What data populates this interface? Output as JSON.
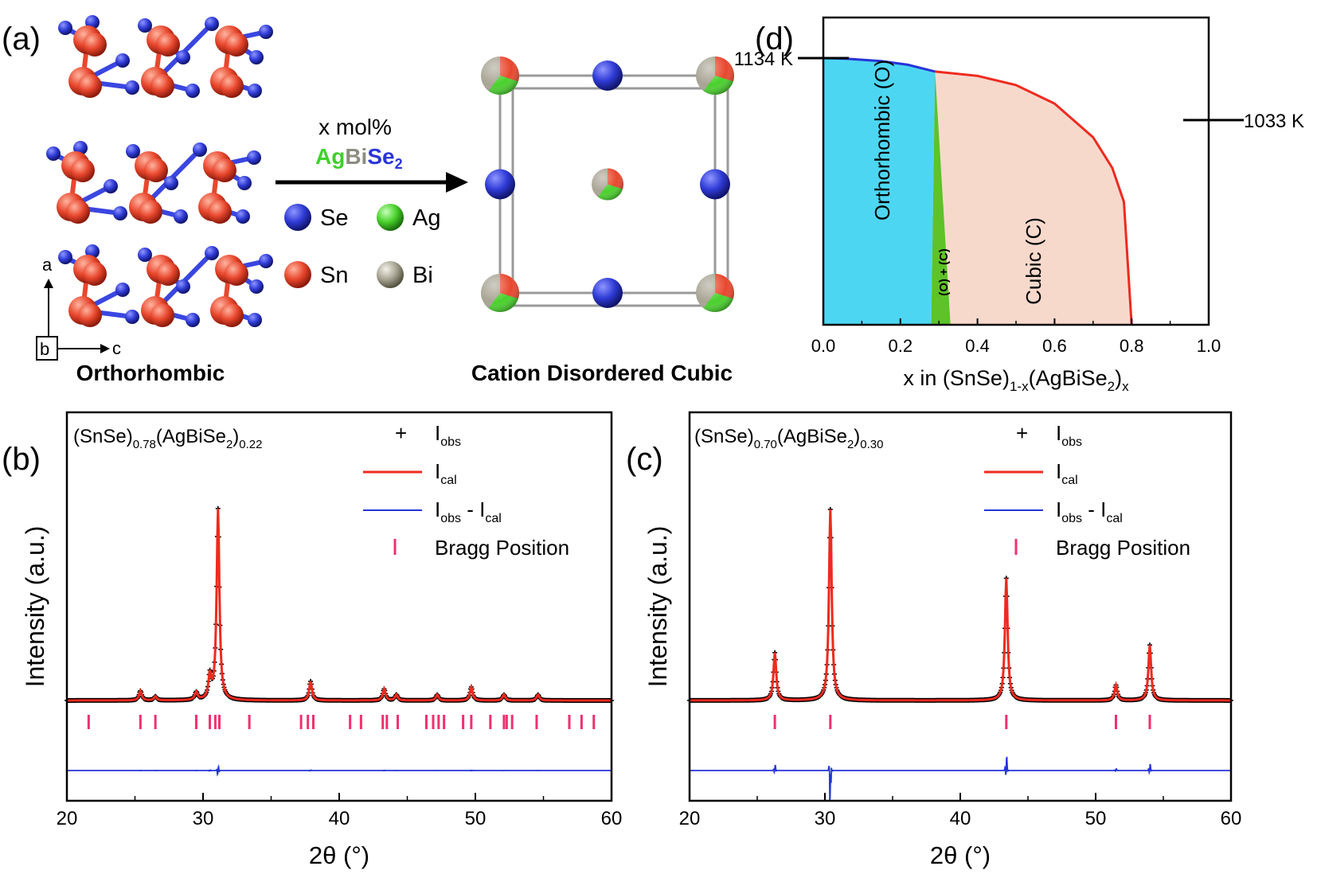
{
  "colors": {
    "se": "#2f3bd6",
    "sn": "#e8472d",
    "ag": "#49d12c",
    "bi": "#a8a494",
    "bond_sn": "#e8472d",
    "bond_se": "#3a46e0",
    "orthorhombic_fill": "#4dd6f2",
    "mixed_fill": "#5ec228",
    "cubic_fill": "#f7d9cc",
    "cal": "#ee2a1f",
    "diff": "#2534d8",
    "bragg": "#f0306e",
    "obs": "#000000",
    "agbise2_ag": "#3ed12b",
    "agbise2_bi": "#8c8c80",
    "agbise2_se": "#2a35d8"
  },
  "panel_a": {
    "label": "(a)",
    "left_caption": "Orthorhombic",
    "right_caption": "Cation Disordered Cubic",
    "arrow_top": "x mol%",
    "arrow_formula": {
      "ag": "Ag",
      "bi": "Bi",
      "se": "Se",
      "sub": "2"
    },
    "axis": {
      "a": "a",
      "b": "b",
      "c": "c"
    },
    "legend": [
      {
        "element": "Se",
        "color": "#2f3bd6"
      },
      {
        "element": "Ag",
        "color": "#49d12c"
      },
      {
        "element": "Sn",
        "color": "#e8472d"
      },
      {
        "element": "Bi",
        "color": "#a8a494"
      }
    ]
  },
  "chart_data": [
    {
      "id": "d",
      "type": "area",
      "label": "(d)",
      "xlabel": {
        "main": "x in (SnSe)",
        "sub1": "1-x",
        "mid": "(AgBiSe",
        "sub2": "2",
        "end": ")",
        "sub3": "x"
      },
      "xlim": [
        0,
        1.0
      ],
      "xticks": [
        0.0,
        0.2,
        0.4,
        0.6,
        0.8,
        1.0
      ],
      "xtick_labels": [
        "0.0",
        "0.2",
        "0.4",
        "0.6",
        "0.8",
        "1.0"
      ],
      "ylim": [
        700,
        1200
      ],
      "left_marker": {
        "label": "1134 K",
        "value": 1134
      },
      "right_marker": {
        "label": "1033 K",
        "value": 1033
      },
      "regions": [
        {
          "name": "Orthorhombic (O)",
          "x_from": 0.0,
          "x_to": 0.29
        },
        {
          "name": "(O) + (C)",
          "x_from": 0.28,
          "x_to": 0.33
        },
        {
          "name": "Cubic (C)",
          "x_from": 0.3,
          "x_to": 0.8
        }
      ],
      "orthorhombic_boundary": [
        [
          0.0,
          1134
        ],
        [
          0.06,
          1133
        ],
        [
          0.15,
          1129
        ],
        [
          0.22,
          1123
        ],
        [
          0.29,
          1112
        ]
      ],
      "cubic_boundary": [
        [
          0.29,
          1112
        ],
        [
          0.4,
          1105
        ],
        [
          0.5,
          1090
        ],
        [
          0.6,
          1060
        ],
        [
          0.7,
          1005
        ],
        [
          0.75,
          955
        ],
        [
          0.78,
          900
        ],
        [
          0.8,
          700
        ]
      ],
      "two_phase_left": [
        [
          0.29,
          1112
        ],
        [
          0.28,
          700
        ]
      ],
      "two_phase_right": [
        [
          0.29,
          1112
        ],
        [
          0.33,
          700
        ]
      ]
    },
    {
      "id": "b",
      "type": "line",
      "label": "(b)",
      "composition": {
        "a": "(SnSe)",
        "s1": "0.78",
        "b": "(AgBiSe",
        "s2": "2",
        "c": ")",
        "s3": "0.22"
      },
      "xlabel": "2θ (°)",
      "ylabel": "Intensity (a.u.)",
      "xlim": [
        20,
        60
      ],
      "xticks": [
        20,
        30,
        40,
        50,
        60
      ],
      "xtick_labels": [
        "20",
        "30",
        "40",
        "50",
        "60"
      ],
      "legend": {
        "obs": "I",
        "obs_sub": "obs",
        "cal": "I",
        "cal_sub": "cal",
        "diff": "I",
        "diff_sub1": "obs",
        "diff_mid": " - I",
        "diff_sub2": "cal",
        "bragg": "Bragg Position"
      },
      "series": [
        {
          "name": "Iobs",
          "mode": "marker"
        },
        {
          "name": "Ical",
          "mode": "line"
        },
        {
          "name": "Iobs - Ical",
          "mode": "line"
        }
      ],
      "peaks": [
        [
          25.4,
          0.05
        ],
        [
          26.5,
          0.02
        ],
        [
          29.5,
          0.04
        ],
        [
          30.5,
          0.12
        ],
        [
          31.1,
          1.0
        ],
        [
          37.9,
          0.1
        ],
        [
          43.3,
          0.06
        ],
        [
          44.2,
          0.03
        ],
        [
          47.2,
          0.03
        ],
        [
          49.7,
          0.07
        ],
        [
          52.1,
          0.03
        ],
        [
          54.6,
          0.03
        ]
      ],
      "bragg_positions": [
        21.6,
        25.4,
        26.5,
        29.5,
        30.5,
        30.9,
        31.2,
        33.4,
        37.2,
        37.7,
        38.1,
        40.8,
        41.6,
        43.2,
        43.5,
        44.3,
        46.4,
        46.9,
        47.3,
        47.7,
        49.1,
        49.7,
        51.1,
        52.1,
        52.3,
        52.7,
        54.5,
        56.9,
        57.8,
        58.7
      ]
    },
    {
      "id": "c",
      "type": "line",
      "label": "(c)",
      "composition": {
        "a": "(SnSe)",
        "s1": "0.70",
        "b": "(AgBiSe",
        "s2": "2",
        "c": ")",
        "s3": "0.30"
      },
      "xlabel": "2θ (°)",
      "ylabel": "Intensity (a.u.)",
      "xlim": [
        20,
        60
      ],
      "xticks": [
        20,
        30,
        40,
        50,
        60
      ],
      "xtick_labels": [
        "20",
        "30",
        "40",
        "50",
        "60"
      ],
      "legend": {
        "obs": "I",
        "obs_sub": "obs",
        "cal": "I",
        "cal_sub": "cal",
        "diff": "I",
        "diff_sub1": "obs",
        "diff_mid": " - I",
        "diff_sub2": "cal",
        "bragg": "Bragg Position"
      },
      "series": [
        {
          "name": "Iobs",
          "mode": "marker"
        },
        {
          "name": "Ical",
          "mode": "line"
        },
        {
          "name": "Iobs - Ical",
          "mode": "line"
        }
      ],
      "peaks": [
        [
          26.3,
          0.25
        ],
        [
          30.4,
          1.0
        ],
        [
          43.4,
          0.64
        ],
        [
          51.5,
          0.08
        ],
        [
          54.0,
          0.29
        ]
      ],
      "bragg_positions": [
        26.3,
        30.4,
        43.4,
        51.5,
        54.0
      ]
    }
  ]
}
